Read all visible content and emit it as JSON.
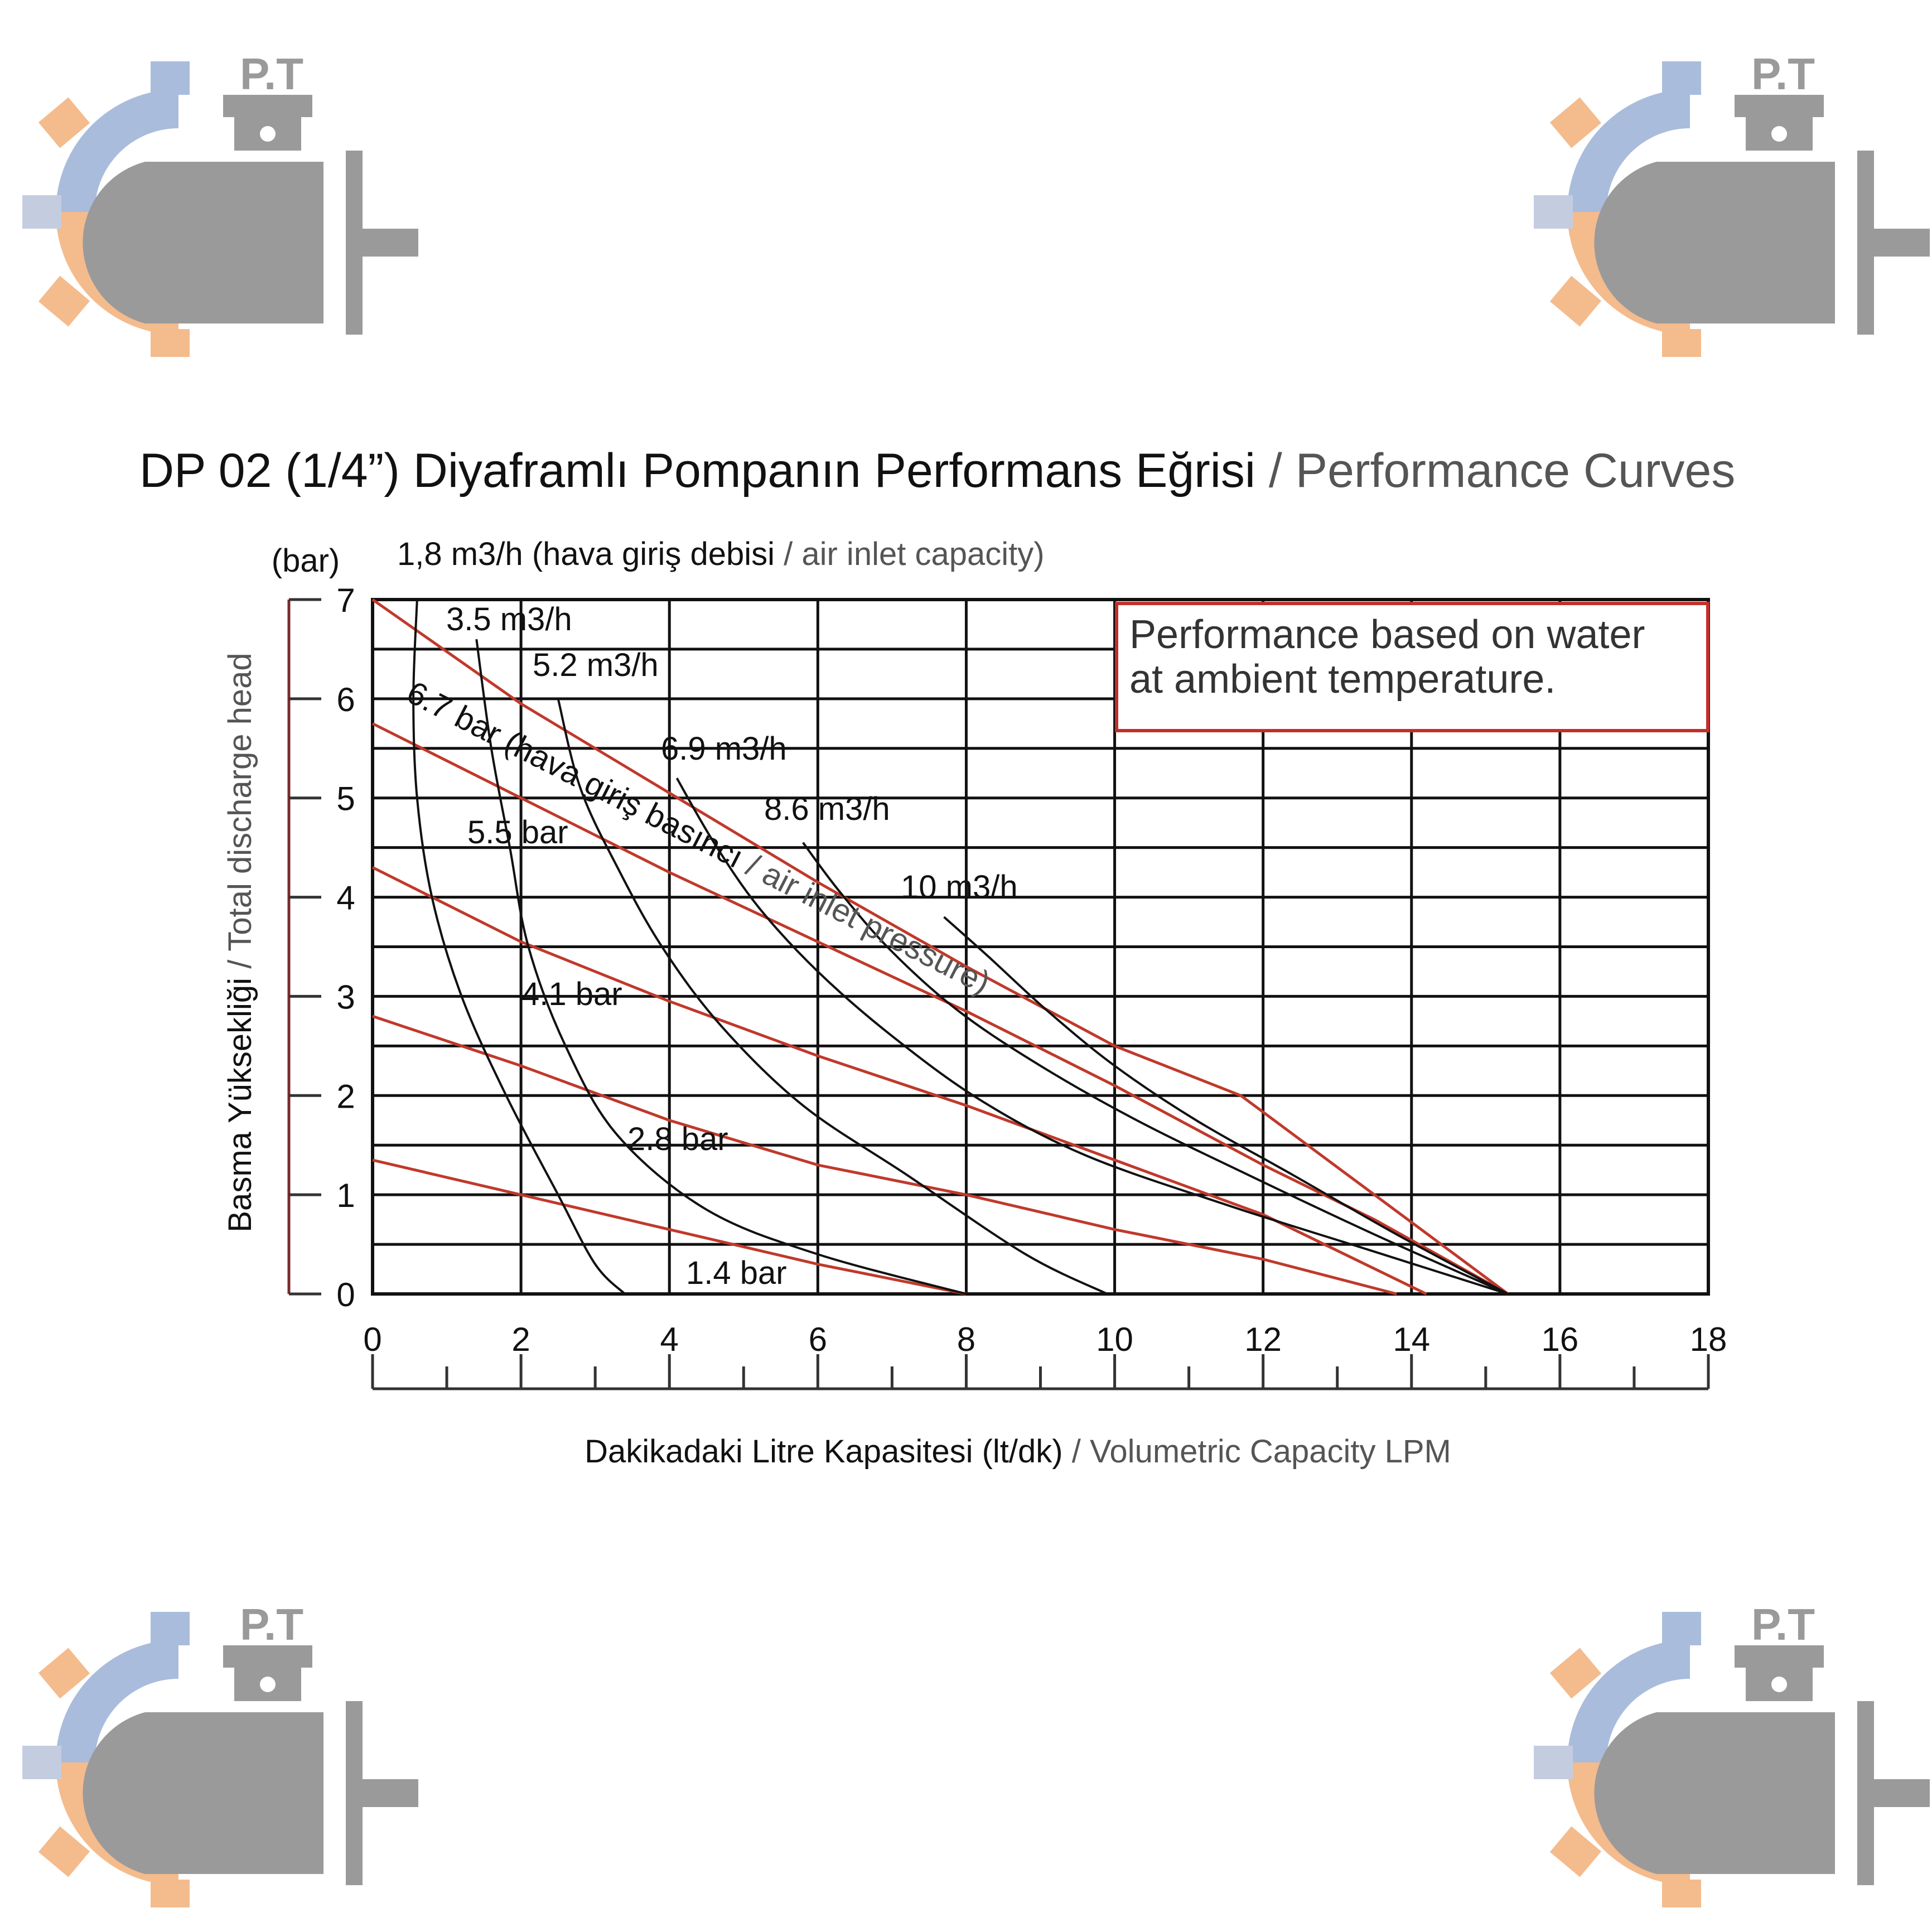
{
  "logo": {
    "text": "P.T",
    "icon": "motor-gear-logo",
    "colors": {
      "gear_blue": "#9fb4d6",
      "gear_orange": "#f2b07a",
      "motor_gray": "#9a9a9a"
    }
  },
  "title": {
    "main": "DP 02 (1/4”) Diyaframlı Pompanın Performans Eğrisi",
    "separator": " / ",
    "sub": "Performance Curves"
  },
  "note": {
    "line1": "Performance based on water",
    "line2": "at ambient temperature."
  },
  "axes": {
    "y_unit": "(bar)",
    "y_label_main": "Basma Yüksekliği",
    "y_label_sep": " / ",
    "y_label_sub": "Total discharge head",
    "x_label_main": "Dakikadaki Litre Kapasitesi (lt/dk)",
    "x_label_sep": " / ",
    "x_label_sub": "Volumetric Capacity LPM",
    "x_ticks": [
      "0",
      "2",
      "4",
      "6",
      "8",
      "10",
      "12",
      "14",
      "16",
      "18"
    ],
    "y_ticks": [
      "0",
      "1",
      "2",
      "3",
      "4",
      "5",
      "6",
      "7"
    ]
  },
  "colors": {
    "pressure_line": "#c0392b",
    "capacity_curve": "#111111",
    "grid": "#111111",
    "note_border": "#c0302a",
    "axis_frame": "#7a2a2a"
  },
  "chart_data": {
    "type": "line",
    "xlim": [
      0,
      18
    ],
    "ylim": [
      0,
      7
    ],
    "grid": true,
    "air_pressure_lines": [
      {
        "name": "6.7 bar",
        "x": [
          0,
          2,
          4,
          6,
          8,
          10,
          11.7,
          13.5,
          15.3
        ],
        "y": [
          7,
          5.95,
          5.05,
          4.15,
          3.3,
          2.5,
          2.0,
          1.0,
          0
        ]
      },
      {
        "name": "5.5 bar",
        "x": [
          0,
          2,
          4,
          6,
          8,
          10,
          12,
          13.5,
          15.3
        ],
        "y": [
          5.75,
          5.0,
          4.25,
          3.55,
          2.85,
          2.1,
          1.3,
          0.75,
          0
        ]
      },
      {
        "name": "4.1 bar",
        "x": [
          0,
          2,
          4,
          6,
          8,
          10,
          12,
          14.2
        ],
        "y": [
          4.3,
          3.55,
          2.95,
          2.4,
          1.9,
          1.35,
          0.8,
          0
        ]
      },
      {
        "name": "2.8 bar",
        "x": [
          0,
          2,
          4,
          6,
          8,
          10,
          12,
          13.8
        ],
        "y": [
          2.8,
          2.3,
          1.75,
          1.3,
          1.0,
          0.65,
          0.35,
          0
        ]
      },
      {
        "name": "1.4 bar",
        "x": [
          0,
          2,
          4,
          6,
          8
        ],
        "y": [
          1.35,
          1.0,
          0.65,
          0.3,
          0
        ]
      }
    ],
    "air_inlet_capacity_curves": [
      {
        "name": "1,8 m3/h",
        "x": [
          0.6,
          0.55,
          0.6,
          0.8,
          1.2,
          1.8,
          2.5,
          3.0,
          3.4
        ],
        "y": [
          7,
          6,
          5,
          4,
          3,
          2,
          1,
          0.3,
          0
        ]
      },
      {
        "name": "3.5 m3/h",
        "x": [
          1.4,
          1.6,
          1.85,
          2.1,
          2.6,
          3.3,
          4.5,
          6,
          8
        ],
        "y": [
          6.6,
          5.5,
          4.5,
          3.5,
          2.5,
          1.6,
          0.85,
          0.4,
          0
        ]
      },
      {
        "name": "5.2 m3/h",
        "x": [
          2.5,
          2.8,
          3.3,
          3.9,
          4.7,
          5.8,
          7.2,
          8.8,
          9.9
        ],
        "y": [
          6.0,
          5.1,
          4.3,
          3.5,
          2.7,
          1.9,
          1.2,
          0.4,
          0
        ]
      },
      {
        "name": "6.9 m3/h",
        "x": [
          4.1,
          4.6,
          5.2,
          6.0,
          7.0,
          8.2,
          9.6,
          11.5,
          13.4,
          15.3
        ],
        "y": [
          5.2,
          4.55,
          3.9,
          3.25,
          2.6,
          1.95,
          1.4,
          0.9,
          0.45,
          0
        ]
      },
      {
        "name": "8.6 m3/h",
        "x": [
          5.8,
          6.3,
          7.0,
          7.9,
          9.0,
          10.3,
          11.8,
          13.5,
          15.3
        ],
        "y": [
          4.55,
          4.05,
          3.45,
          2.85,
          2.3,
          1.75,
          1.2,
          0.6,
          0
        ]
      },
      {
        "name": "10 m3/h",
        "x": [
          7.7,
          8.3,
          9.1,
          10.0,
          11.1,
          12.4,
          13.8,
          15.3
        ],
        "y": [
          3.8,
          3.4,
          2.85,
          2.3,
          1.75,
          1.2,
          0.6,
          0
        ]
      }
    ],
    "labels": {
      "capacity_series_note": "(hava giriş debisi",
      "capacity_series_note_sep": " / ",
      "capacity_series_note_sub": "air inlet capacity)",
      "pressure_series_note": "(hava giriş basıncı",
      "pressure_series_note_sep": " / ",
      "pressure_series_note_sub": "air inlet pressure)"
    }
  }
}
